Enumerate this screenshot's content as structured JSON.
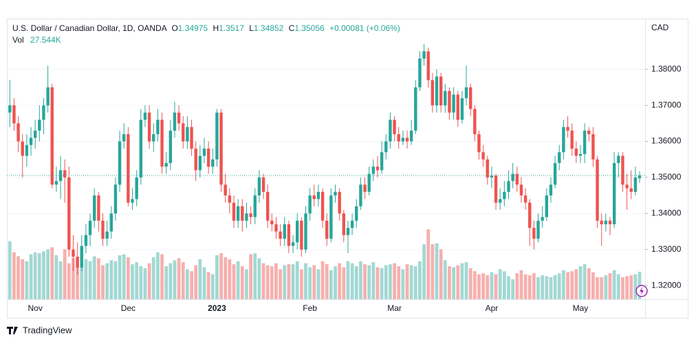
{
  "chart_data": {
    "type": "candlestick",
    "legend": {
      "symbol": "U.S. Dollar / Canadian Dollar, 1D, OANDA",
      "o": "O",
      "h": "H",
      "l": "L",
      "c": "C",
      "change": "+0.00081 (+0.06%)",
      "vol_name": "Vol",
      "vol": "27.544K"
    },
    "currency": "CAD",
    "brand": "TradingView",
    "up_color": "#26a69a",
    "down_color": "#ef5350",
    "up_volume_color": "#a3d8d3",
    "down_volume_color": "#f6b0ae",
    "ylim": [
      1.3162,
      1.3939
    ],
    "yticks": [
      {
        "value": 1.32,
        "label": "1.32000"
      },
      {
        "value": 1.33,
        "label": "1.33000"
      },
      {
        "value": 1.34,
        "label": "1.34000"
      },
      {
        "value": 1.35,
        "label": "1.35000"
      },
      {
        "value": 1.36,
        "label": "1.36000"
      },
      {
        "value": 1.37,
        "label": "1.37000"
      },
      {
        "value": 1.38,
        "label": "1.38000"
      }
    ],
    "grid": true,
    "volume_lim": [
      0,
      75
    ],
    "categories": [
      null,
      null,
      null,
      null,
      null,
      null,
      "Nov",
      null,
      null,
      null,
      null,
      null,
      null,
      null,
      null,
      null,
      null,
      null,
      null,
      null,
      null,
      null,
      null,
      null,
      null,
      null,
      null,
      null,
      "Dec",
      null,
      null,
      null,
      null,
      null,
      null,
      null,
      null,
      null,
      null,
      null,
      null,
      null,
      null,
      null,
      null,
      null,
      null,
      null,
      null,
      "2023",
      null,
      null,
      null,
      null,
      null,
      null,
      null,
      null,
      null,
      null,
      null,
      null,
      null,
      null,
      null,
      null,
      null,
      null,
      null,
      null,
      null,
      "Feb",
      null,
      null,
      null,
      null,
      null,
      null,
      null,
      null,
      null,
      null,
      null,
      null,
      null,
      null,
      null,
      null,
      null,
      null,
      null,
      "Mar",
      null,
      null,
      null,
      null,
      null,
      null,
      null,
      null,
      null,
      null,
      null,
      null,
      null,
      null,
      null,
      null,
      null,
      null,
      null,
      null,
      null,
      null,
      "Apr",
      null,
      null,
      null,
      null,
      null,
      null,
      null,
      null,
      null,
      null,
      null,
      null,
      null,
      null,
      null,
      null,
      null,
      null,
      null,
      null,
      "May",
      null,
      null,
      null,
      null,
      null,
      null,
      null,
      null,
      null,
      null,
      null,
      null,
      null,
      null
    ],
    "candles": [
      [
        1.368,
        1.377,
        1.364,
        1.37
      ],
      [
        1.37,
        1.372,
        1.363,
        1.365
      ],
      [
        1.365,
        1.367,
        1.357,
        1.36
      ],
      [
        1.36,
        1.362,
        1.35,
        1.356
      ],
      [
        1.356,
        1.362,
        1.353,
        1.359
      ],
      [
        1.359,
        1.364,
        1.356,
        1.361
      ],
      [
        1.361,
        1.366,
        1.358,
        1.363
      ],
      [
        1.363,
        1.37,
        1.36,
        1.366
      ],
      [
        1.366,
        1.372,
        1.362,
        1.37
      ],
      [
        1.37,
        1.381,
        1.368,
        1.375
      ],
      [
        1.375,
        1.376,
        1.347,
        1.348
      ],
      [
        1.348,
        1.353,
        1.346,
        1.349
      ],
      [
        1.349,
        1.356,
        1.344,
        1.352
      ],
      [
        1.352,
        1.355,
        1.343,
        1.35
      ],
      [
        1.35,
        1.353,
        1.328,
        1.33
      ],
      [
        1.33,
        1.334,
        1.324,
        1.328
      ],
      [
        1.328,
        1.332,
        1.323,
        1.325
      ],
      [
        1.325,
        1.334,
        1.324,
        1.331
      ],
      [
        1.331,
        1.337,
        1.329,
        1.334
      ],
      [
        1.334,
        1.34,
        1.331,
        1.338
      ],
      [
        1.338,
        1.347,
        1.336,
        1.345
      ],
      [
        1.345,
        1.346,
        1.335,
        1.338
      ],
      [
        1.338,
        1.34,
        1.331,
        1.333
      ],
      [
        1.333,
        1.338,
        1.331,
        1.335
      ],
      [
        1.335,
        1.342,
        1.333,
        1.34
      ],
      [
        1.34,
        1.35,
        1.338,
        1.348
      ],
      [
        1.348,
        1.363,
        1.346,
        1.36
      ],
      [
        1.36,
        1.365,
        1.358,
        1.362
      ],
      [
        1.362,
        1.364,
        1.342,
        1.343
      ],
      [
        1.343,
        1.347,
        1.341,
        1.344
      ],
      [
        1.344,
        1.352,
        1.342,
        1.35
      ],
      [
        1.35,
        1.369,
        1.348,
        1.366
      ],
      [
        1.366,
        1.37,
        1.364,
        1.368
      ],
      [
        1.368,
        1.37,
        1.358,
        1.36
      ],
      [
        1.36,
        1.365,
        1.357,
        1.362
      ],
      [
        1.362,
        1.369,
        1.36,
        1.366
      ],
      [
        1.366,
        1.368,
        1.351,
        1.353
      ],
      [
        1.353,
        1.357,
        1.351,
        1.354
      ],
      [
        1.354,
        1.366,
        1.352,
        1.363
      ],
      [
        1.363,
        1.371,
        1.361,
        1.368
      ],
      [
        1.368,
        1.37,
        1.363,
        1.365
      ],
      [
        1.365,
        1.367,
        1.358,
        1.36
      ],
      [
        1.36,
        1.367,
        1.358,
        1.364
      ],
      [
        1.364,
        1.366,
        1.356,
        1.358
      ],
      [
        1.358,
        1.36,
        1.349,
        1.352
      ],
      [
        1.352,
        1.359,
        1.35,
        1.356
      ],
      [
        1.356,
        1.361,
        1.354,
        1.358
      ],
      [
        1.358,
        1.36,
        1.351,
        1.353
      ],
      [
        1.353,
        1.358,
        1.351,
        1.355
      ],
      [
        1.355,
        1.369,
        1.353,
        1.368
      ],
      [
        1.368,
        1.369,
        1.346,
        1.348
      ],
      [
        1.348,
        1.351,
        1.343,
        1.345
      ],
      [
        1.345,
        1.347,
        1.34,
        1.343
      ],
      [
        1.343,
        1.345,
        1.336,
        1.338
      ],
      [
        1.338,
        1.344,
        1.336,
        1.342
      ],
      [
        1.342,
        1.344,
        1.335,
        1.338
      ],
      [
        1.338,
        1.343,
        1.336,
        1.34
      ],
      [
        1.34,
        1.342,
        1.337,
        1.339
      ],
      [
        1.339,
        1.347,
        1.337,
        1.345
      ],
      [
        1.345,
        1.352,
        1.343,
        1.35
      ],
      [
        1.35,
        1.351,
        1.344,
        1.346
      ],
      [
        1.346,
        1.348,
        1.336,
        1.338
      ],
      [
        1.338,
        1.34,
        1.335,
        1.337
      ],
      [
        1.337,
        1.339,
        1.333,
        1.335
      ],
      [
        1.335,
        1.337,
        1.331,
        1.333
      ],
      [
        1.333,
        1.339,
        1.331,
        1.337
      ],
      [
        1.337,
        1.338,
        1.329,
        1.331
      ],
      [
        1.331,
        1.334,
        1.329,
        1.332
      ],
      [
        1.332,
        1.34,
        1.33,
        1.338
      ],
      [
        1.338,
        1.339,
        1.328,
        1.33
      ],
      [
        1.33,
        1.342,
        1.329,
        1.34
      ],
      [
        1.34,
        1.347,
        1.338,
        1.345
      ],
      [
        1.345,
        1.348,
        1.342,
        1.344
      ],
      [
        1.344,
        1.348,
        1.342,
        1.346
      ],
      [
        1.346,
        1.347,
        1.336,
        1.338
      ],
      [
        1.338,
        1.34,
        1.331,
        1.333
      ],
      [
        1.333,
        1.347,
        1.332,
        1.345
      ],
      [
        1.345,
        1.348,
        1.343,
        1.346
      ],
      [
        1.346,
        1.347,
        1.338,
        1.34
      ],
      [
        1.34,
        1.341,
        1.332,
        1.334
      ],
      [
        1.334,
        1.338,
        1.329,
        1.336
      ],
      [
        1.336,
        1.34,
        1.334,
        1.338
      ],
      [
        1.338,
        1.344,
        1.336,
        1.342
      ],
      [
        1.342,
        1.35,
        1.341,
        1.348
      ],
      [
        1.348,
        1.35,
        1.344,
        1.346
      ],
      [
        1.346,
        1.353,
        1.345,
        1.351
      ],
      [
        1.351,
        1.355,
        1.349,
        1.353
      ],
      [
        1.353,
        1.356,
        1.35,
        1.352
      ],
      [
        1.352,
        1.36,
        1.351,
        1.357
      ],
      [
        1.357,
        1.362,
        1.355,
        1.36
      ],
      [
        1.36,
        1.368,
        1.358,
        1.366
      ],
      [
        1.366,
        1.367,
        1.36,
        1.362
      ],
      [
        1.362,
        1.364,
        1.358,
        1.36
      ],
      [
        1.36,
        1.363,
        1.359,
        1.361
      ],
      [
        1.361,
        1.363,
        1.358,
        1.36
      ],
      [
        1.36,
        1.366,
        1.359,
        1.363
      ],
      [
        1.363,
        1.377,
        1.362,
        1.375
      ],
      [
        1.375,
        1.385,
        1.374,
        1.383
      ],
      [
        1.383,
        1.387,
        1.381,
        1.385
      ],
      [
        1.385,
        1.386,
        1.375,
        1.377
      ],
      [
        1.377,
        1.379,
        1.368,
        1.37
      ],
      [
        1.37,
        1.38,
        1.368,
        1.378
      ],
      [
        1.378,
        1.379,
        1.368,
        1.37
      ],
      [
        1.37,
        1.376,
        1.368,
        1.374
      ],
      [
        1.374,
        1.375,
        1.366,
        1.368
      ],
      [
        1.368,
        1.375,
        1.366,
        1.373
      ],
      [
        1.373,
        1.374,
        1.364,
        1.366
      ],
      [
        1.366,
        1.374,
        1.365,
        1.372
      ],
      [
        1.372,
        1.381,
        1.37,
        1.375
      ],
      [
        1.375,
        1.376,
        1.367,
        1.369
      ],
      [
        1.369,
        1.37,
        1.36,
        1.362
      ],
      [
        1.362,
        1.363,
        1.355,
        1.357
      ],
      [
        1.357,
        1.359,
        1.353,
        1.355
      ],
      [
        1.355,
        1.356,
        1.348,
        1.35
      ],
      [
        1.35,
        1.353,
        1.347,
        1.3505
      ],
      [
        1.3505,
        1.351,
        1.341,
        1.343
      ],
      [
        1.343,
        1.347,
        1.341,
        1.344
      ],
      [
        1.344,
        1.349,
        1.342,
        1.346
      ],
      [
        1.346,
        1.352,
        1.344,
        1.349
      ],
      [
        1.349,
        1.354,
        1.347,
        1.351
      ],
      [
        1.351,
        1.353,
        1.346,
        1.348
      ],
      [
        1.348,
        1.35,
        1.343,
        1.345
      ],
      [
        1.345,
        1.347,
        1.341,
        1.343
      ],
      [
        1.343,
        1.344,
        1.331,
        1.336
      ],
      [
        1.336,
        1.338,
        1.33,
        1.333
      ],
      [
        1.333,
        1.34,
        1.332,
        1.338
      ],
      [
        1.338,
        1.342,
        1.336,
        1.339
      ],
      [
        1.339,
        1.347,
        1.338,
        1.345
      ],
      [
        1.345,
        1.35,
        1.343,
        1.348
      ],
      [
        1.348,
        1.356,
        1.347,
        1.354
      ],
      [
        1.354,
        1.359,
        1.352,
        1.357
      ],
      [
        1.357,
        1.366,
        1.355,
        1.364
      ],
      [
        1.364,
        1.367,
        1.361,
        1.363
      ],
      [
        1.363,
        1.365,
        1.356,
        1.358
      ],
      [
        1.358,
        1.36,
        1.354,
        1.356
      ],
      [
        1.356,
        1.359,
        1.354,
        1.3565
      ],
      [
        1.3565,
        1.365,
        1.354,
        1.363
      ],
      [
        1.363,
        1.364,
        1.36,
        1.362
      ],
      [
        1.362,
        1.364,
        1.353,
        1.355
      ],
      [
        1.355,
        1.356,
        1.336,
        1.338
      ],
      [
        1.338,
        1.34,
        1.331,
        1.337
      ],
      [
        1.337,
        1.34,
        1.335,
        1.338
      ],
      [
        1.338,
        1.339,
        1.334,
        1.337
      ],
      [
        1.337,
        1.357,
        1.336,
        1.354
      ],
      [
        1.354,
        1.357,
        1.35,
        1.356
      ],
      [
        1.356,
        1.357,
        1.346,
        1.348
      ],
      [
        1.348,
        1.351,
        1.341,
        1.347
      ],
      [
        1.347,
        1.352,
        1.344,
        1.346
      ],
      [
        1.346,
        1.353,
        1.345,
        1.35
      ],
      [
        1.34975,
        1.3517,
        1.34852,
        1.35056
      ]
    ],
    "volumes": [
      58,
      47,
      43,
      40,
      38,
      45,
      47,
      46,
      48,
      50,
      52,
      44,
      38,
      50,
      36,
      41,
      32,
      35,
      40,
      38,
      43,
      41,
      34,
      36,
      39,
      38,
      44,
      45,
      42,
      35,
      37,
      33,
      31,
      36,
      42,
      47,
      45,
      33,
      36,
      39,
      41,
      37,
      30,
      28,
      34,
      40,
      32,
      27,
      25,
      44,
      46,
      42,
      40,
      35,
      38,
      33,
      30,
      45,
      46,
      41,
      36,
      34,
      33,
      36,
      30,
      34,
      35,
      35,
      38,
      30,
      36,
      32,
      34,
      30,
      38,
      35,
      29,
      33,
      36,
      32,
      38,
      36,
      33,
      38,
      35,
      34,
      37,
      32,
      31,
      34,
      35,
      36,
      33,
      30,
      35,
      34,
      33,
      38,
      55,
      70,
      55,
      56,
      50,
      39,
      33,
      32,
      34,
      36,
      37,
      31,
      28,
      25,
      26,
      24,
      27,
      25,
      30,
      28,
      23,
      20,
      26,
      29,
      25,
      24,
      26,
      22,
      24,
      23,
      22,
      24,
      26,
      29,
      27,
      28,
      30,
      33,
      35,
      31,
      27,
      22,
      22,
      24,
      26,
      29,
      25,
      22,
      23,
      24,
      25,
      27.544
    ]
  }
}
